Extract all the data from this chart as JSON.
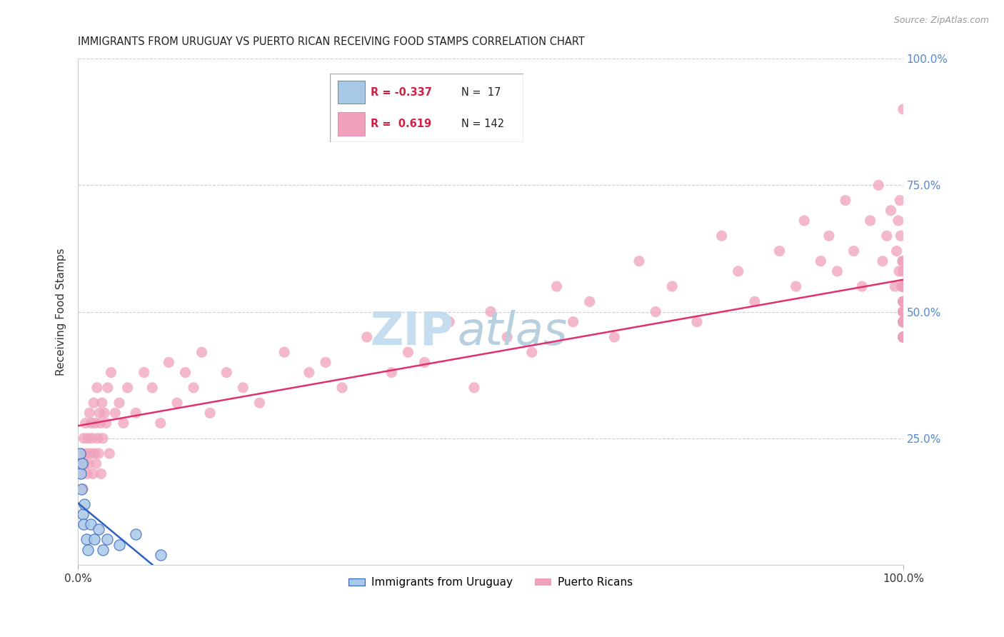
{
  "title": "IMMIGRANTS FROM URUGUAY VS PUERTO RICAN RECEIVING FOOD STAMPS CORRELATION CHART",
  "source": "Source: ZipAtlas.com",
  "ylabel": "Receiving Food Stamps",
  "uruguay_color": "#a8c8e8",
  "pr_color": "#f0a0b8",
  "uruguay_line_color": "#3060c0",
  "pr_line_color": "#e03070",
  "background_color": "#ffffff",
  "marker_size": 120,
  "xlim": [
    0,
    100
  ],
  "ylim": [
    0,
    100
  ],
  "title_fontsize": 10.5,
  "watermark_zip_color": "#c8dff0",
  "watermark_atlas_color": "#c8dff0",
  "legend_R1": "-0.337",
  "legend_N1": "17",
  "legend_R2": "0.619",
  "legend_N2": "142",
  "legend_label1": "Immigrants from Uruguay",
  "legend_label2": "Puerto Ricans",
  "uru_x": [
    0.2,
    0.3,
    0.4,
    0.5,
    0.6,
    0.7,
    0.8,
    1.0,
    1.2,
    1.5,
    2.0,
    2.5,
    3.0,
    3.5,
    5.0,
    7.0,
    10.0
  ],
  "uru_y": [
    22.0,
    18.0,
    15.0,
    20.0,
    10.0,
    8.0,
    12.0,
    5.0,
    3.0,
    8.0,
    5.0,
    7.0,
    3.0,
    5.0,
    4.0,
    6.0,
    2.0
  ],
  "pr_x": [
    0.3,
    0.4,
    0.5,
    0.6,
    0.7,
    0.8,
    0.9,
    1.0,
    1.1,
    1.2,
    1.3,
    1.4,
    1.5,
    1.6,
    1.7,
    1.8,
    1.9,
    2.0,
    2.1,
    2.2,
    2.3,
    2.4,
    2.5,
    2.6,
    2.7,
    2.8,
    2.9,
    3.0,
    3.2,
    3.4,
    3.6,
    3.8,
    4.0,
    4.5,
    5.0,
    5.5,
    6.0,
    7.0,
    8.0,
    9.0,
    10.0,
    11.0,
    12.0,
    13.0,
    14.0,
    15.0,
    16.0,
    18.0,
    20.0,
    22.0,
    25.0,
    28.0,
    30.0,
    32.0,
    35.0,
    38.0,
    40.0,
    42.0,
    45.0,
    48.0,
    50.0,
    52.0,
    55.0,
    58.0,
    60.0,
    62.0,
    65.0,
    68.0,
    70.0,
    72.0,
    75.0,
    78.0,
    80.0,
    82.0,
    85.0,
    87.0,
    88.0,
    90.0,
    91.0,
    92.0,
    93.0,
    94.0,
    95.0,
    96.0,
    97.0,
    97.5,
    98.0,
    98.5,
    99.0,
    99.2,
    99.4,
    99.5,
    99.6,
    99.7,
    99.8,
    99.9,
    100.0,
    100.0,
    100.0,
    100.0,
    100.0,
    100.0,
    100.0,
    100.0,
    100.0,
    100.0,
    100.0,
    100.0,
    100.0,
    100.0,
    100.0,
    100.0,
    100.0,
    100.0,
    100.0,
    100.0,
    100.0,
    100.0,
    100.0,
    100.0,
    100.0,
    100.0,
    100.0,
    100.0,
    100.0,
    100.0,
    100.0,
    100.0,
    100.0,
    100.0,
    100.0,
    100.0,
    100.0,
    100.0,
    100.0,
    100.0,
    100.0,
    100.0,
    100.0,
    100.0,
    100.0,
    100.0
  ],
  "pr_y": [
    20.0,
    18.0,
    22.0,
    15.0,
    25.0,
    20.0,
    28.0,
    22.0,
    18.0,
    25.0,
    20.0,
    30.0,
    22.0,
    28.0,
    25.0,
    18.0,
    32.0,
    22.0,
    28.0,
    20.0,
    35.0,
    25.0,
    22.0,
    30.0,
    28.0,
    18.0,
    32.0,
    25.0,
    30.0,
    28.0,
    35.0,
    22.0,
    38.0,
    30.0,
    32.0,
    28.0,
    35.0,
    30.0,
    38.0,
    35.0,
    28.0,
    40.0,
    32.0,
    38.0,
    35.0,
    42.0,
    30.0,
    38.0,
    35.0,
    32.0,
    42.0,
    38.0,
    40.0,
    35.0,
    45.0,
    38.0,
    42.0,
    40.0,
    48.0,
    35.0,
    50.0,
    45.0,
    42.0,
    55.0,
    48.0,
    52.0,
    45.0,
    60.0,
    50.0,
    55.0,
    48.0,
    65.0,
    58.0,
    52.0,
    62.0,
    55.0,
    68.0,
    60.0,
    65.0,
    58.0,
    72.0,
    62.0,
    55.0,
    68.0,
    75.0,
    60.0,
    65.0,
    70.0,
    55.0,
    62.0,
    68.0,
    58.0,
    72.0,
    65.0,
    55.0,
    60.0,
    50.0,
    52.0,
    48.0,
    55.0,
    45.0,
    50.0,
    52.0,
    48.0,
    55.0,
    45.0,
    60.0,
    50.0,
    55.0,
    48.0,
    52.0,
    45.0,
    50.0,
    55.0,
    48.0,
    52.0,
    45.0,
    55.0,
    50.0,
    45.0,
    48.0,
    55.0,
    50.0,
    52.0,
    58.0,
    45.0,
    48.0,
    55.0,
    50.0,
    52.0,
    45.0,
    48.0,
    55.0,
    50.0,
    52.0,
    45.0,
    48.0,
    55.0,
    90.0,
    45.0,
    48.0,
    55.0
  ]
}
